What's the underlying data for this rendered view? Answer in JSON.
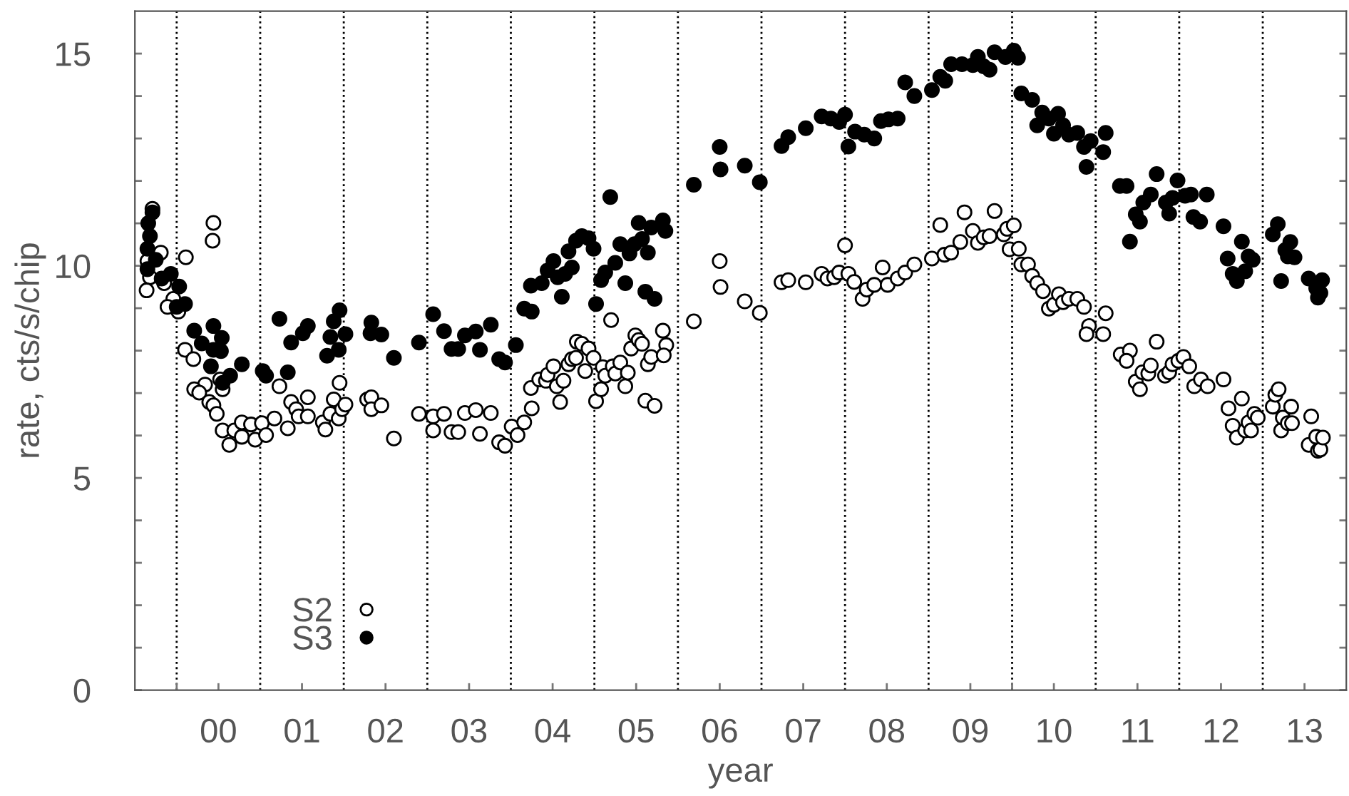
{
  "chart_data": {
    "type": "scatter",
    "xlabel": "year",
    "ylabel": "rate, cts/s/chip",
    "xlim": [
      -1.0,
      13.5
    ],
    "ylim": [
      0,
      16
    ],
    "xticks": [
      {
        "value": -0.5,
        "label": null
      },
      {
        "value": 0,
        "label": "00"
      },
      {
        "value": 1,
        "label": "01"
      },
      {
        "value": 2,
        "label": "02"
      },
      {
        "value": 3,
        "label": "03"
      },
      {
        "value": 4,
        "label": "04"
      },
      {
        "value": 5,
        "label": "05"
      },
      {
        "value": 6,
        "label": "06"
      },
      {
        "value": 7,
        "label": "07"
      },
      {
        "value": 8,
        "label": "08"
      },
      {
        "value": 9,
        "label": "09"
      },
      {
        "value": 9.5,
        "label": null
      },
      10,
      11,
      12,
      13
    ],
    "yticks": [
      0,
      {
        "value": 1,
        "label": null
      },
      {
        "value": 2,
        "label": null
      },
      {
        "value": 3,
        "label": null
      },
      {
        "value": 4,
        "label": null
      },
      5,
      {
        "value": 6,
        "label": null
      },
      {
        "value": 7,
        "label": null
      },
      {
        "value": 8,
        "label": null
      },
      {
        "value": 9,
        "label": null
      },
      10,
      {
        "value": 11,
        "label": null
      },
      {
        "value": 12,
        "label": null
      },
      {
        "value": 13,
        "label": null
      },
      {
        "value": 14,
        "label": null
      },
      15
    ],
    "ref_lines": [
      {
        "axis": "x",
        "value": -0.5,
        "line_style": "dotted",
        "color": "#000000"
      },
      {
        "axis": "x",
        "value": 0.5,
        "line_style": "dotted",
        "color": "#000000"
      },
      {
        "axis": "x",
        "value": 1.5,
        "line_style": "dotted",
        "color": "#000000"
      },
      {
        "axis": "x",
        "value": 2.5,
        "line_style": "dotted",
        "color": "#000000"
      },
      {
        "axis": "x",
        "value": 3.5,
        "line_style": "dotted",
        "color": "#000000"
      },
      {
        "axis": "x",
        "value": 4.5,
        "line_style": "dotted",
        "color": "#000000"
      },
      {
        "axis": "x",
        "value": 5.5,
        "line_style": "dotted",
        "color": "#000000"
      },
      {
        "axis": "x",
        "value": 6.5,
        "line_style": "dotted",
        "color": "#000000"
      },
      {
        "axis": "x",
        "value": 7.5,
        "line_style": "dotted",
        "color": "#000000"
      },
      {
        "axis": "x",
        "value": 8.5,
        "line_style": "dotted",
        "color": "#000000"
      },
      {
        "axis": "x",
        "value": 9.5,
        "line_style": "dotted",
        "color": "#000000"
      },
      {
        "axis": "x",
        "value": 10.5,
        "line_style": "dotted",
        "color": "#000000"
      },
      {
        "axis": "x",
        "value": 11.5,
        "line_style": "dotted",
        "color": "#000000"
      },
      {
        "axis": "x",
        "value": 12.5,
        "line_style": "dotted",
        "color": "#000000"
      }
    ],
    "grid": false,
    "legend": "bottom left",
    "marker": "circle",
    "series": [
      {
        "name": "S2",
        "color": "#ffffff",
        "x": [
          -0.79,
          -0.85,
          -0.69,
          -0.82,
          -0.86,
          -0.65,
          -0.39,
          -0.06,
          -0.07,
          -0.54,
          -0.61,
          -0.48,
          -0.4,
          -0.3,
          -0.16,
          -0.29,
          -0.23,
          -0.11,
          -0.06,
          -0.02,
          0.02,
          0.05,
          0.05,
          0.13,
          0.19,
          0.28,
          0.28,
          0.39,
          0.44,
          0.52,
          0.57,
          0.67,
          0.73,
          0.83,
          0.87,
          0.93,
          0.96,
          1.07,
          1.07,
          1.25,
          1.28,
          1.34,
          1.38,
          1.44,
          1.45,
          1.48,
          1.52,
          1.78,
          1.83,
          1.83,
          1.95,
          2.1,
          2.4,
          2.57,
          2.57,
          2.7,
          2.79,
          2.87,
          2.95,
          3.08,
          3.13,
          3.26,
          3.36,
          3.43,
          3.51,
          3.58,
          3.66,
          3.75,
          3.74,
          3.84,
          3.92,
          3.94,
          4.01,
          4.05,
          4.09,
          4.13,
          4.19,
          4.23,
          4.28,
          4.29,
          4.35,
          4.39,
          4.43,
          4.49,
          4.52,
          4.58,
          4.6,
          4.63,
          4.7,
          4.72,
          4.75,
          4.81,
          4.87,
          4.9,
          4.94,
          4.99,
          5.03,
          5.07,
          5.11,
          5.14,
          5.18,
          5.22,
          5.32,
          5.36,
          5.33,
          5.69,
          6.0,
          6.01,
          6.3,
          6.48,
          6.74,
          6.82,
          7.03,
          7.22,
          7.29,
          7.37,
          7.43,
          7.5,
          7.54,
          7.61,
          7.71,
          7.76,
          7.85,
          7.95,
          8.01,
          8.13,
          8.22,
          8.33,
          8.54,
          8.64,
          8.69,
          8.77,
          8.88,
          8.93,
          9.03,
          9.09,
          9.16,
          9.23,
          9.29,
          9.4,
          9.44,
          9.52,
          9.47,
          9.58,
          9.61,
          9.69,
          9.74,
          9.8,
          9.87,
          9.94,
          10.0,
          10.06,
          10.11,
          10.18,
          10.28,
          10.36,
          10.42,
          10.39,
          10.62,
          10.59,
          10.8,
          10.91,
          10.87,
          10.98,
          11.03,
          11.06,
          11.13,
          11.16,
          11.23,
          11.33,
          11.38,
          11.42,
          11.49,
          11.55,
          11.62,
          11.68,
          11.76,
          11.84,
          12.03,
          12.09,
          12.14,
          12.19,
          12.25,
          12.29,
          12.33,
          12.36,
          12.4,
          12.44,
          12.62,
          12.65,
          12.69,
          12.72,
          12.74,
          12.8,
          12.84,
          12.85,
          13.08,
          13.05,
          13.16,
          13.14,
          13.19,
          13.22
        ],
        "values": [
          11.34,
          10.11,
          10.31,
          9.73,
          9.42,
          9.59,
          10.2,
          11.01,
          10.59,
          9.22,
          9.03,
          8.92,
          8.02,
          7.8,
          7.2,
          7.09,
          7.01,
          6.79,
          6.71,
          6.51,
          7.32,
          7.09,
          6.12,
          5.78,
          6.12,
          6.31,
          5.97,
          6.26,
          5.9,
          6.29,
          6.01,
          6.4,
          7.16,
          6.17,
          6.79,
          6.62,
          6.45,
          6.9,
          6.45,
          6.31,
          6.14,
          6.51,
          6.85,
          6.4,
          7.24,
          6.62,
          6.73,
          6.85,
          6.9,
          6.62,
          6.71,
          5.93,
          6.51,
          6.45,
          6.12,
          6.51,
          6.08,
          6.08,
          6.53,
          6.6,
          6.04,
          6.53,
          5.84,
          5.76,
          6.21,
          6.01,
          6.31,
          6.64,
          7.12,
          7.32,
          7.29,
          7.43,
          7.63,
          7.16,
          6.79,
          7.29,
          7.68,
          7.8,
          7.83,
          8.21,
          8.16,
          7.52,
          8.05,
          7.83,
          6.81,
          7.09,
          7.61,
          7.41,
          8.72,
          7.63,
          7.46,
          7.72,
          7.16,
          7.48,
          8.05,
          8.36,
          8.25,
          8.16,
          6.82,
          7.68,
          7.85,
          6.7,
          8.47,
          8.13,
          7.89,
          8.69,
          10.11,
          9.5,
          9.16,
          8.89,
          9.61,
          9.66,
          9.61,
          9.81,
          9.7,
          9.73,
          9.84,
          10.48,
          9.81,
          9.62,
          9.22,
          9.44,
          9.55,
          9.96,
          9.55,
          9.7,
          9.84,
          10.03,
          10.17,
          10.96,
          10.26,
          10.31,
          10.56,
          11.26,
          10.82,
          10.54,
          10.67,
          10.7,
          11.29,
          10.74,
          10.87,
          10.95,
          10.39,
          10.4,
          10.03,
          10.03,
          9.76,
          9.59,
          9.4,
          8.99,
          9.08,
          9.33,
          9.14,
          9.22,
          9.22,
          9.03,
          8.58,
          8.39,
          8.88,
          8.39,
          7.91,
          8.0,
          7.76,
          7.27,
          7.09,
          7.49,
          7.46,
          7.65,
          8.21,
          7.41,
          7.49,
          7.68,
          7.76,
          7.85,
          7.63,
          7.16,
          7.32,
          7.16,
          7.32,
          6.64,
          6.23,
          5.95,
          6.87,
          6.12,
          6.31,
          6.12,
          6.51,
          6.42,
          6.68,
          6.96,
          7.09,
          6.12,
          6.42,
          6.29,
          6.68,
          6.29,
          6.45,
          5.78,
          5.64,
          5.97,
          5.67,
          5.95
        ]
      },
      {
        "name": "S3",
        "color": "#000000",
        "x": [
          -0.79,
          -0.84,
          -0.82,
          -0.85,
          -0.75,
          -0.85,
          -0.68,
          -0.57,
          -0.47,
          -0.4,
          -0.5,
          -0.29,
          -0.2,
          -0.06,
          0.04,
          -0.06,
          0.03,
          -0.09,
          0.05,
          0.14,
          0.28,
          0.53,
          0.57,
          0.73,
          0.87,
          1.01,
          1.07,
          0.83,
          1.3,
          1.34,
          1.38,
          1.45,
          1.52,
          1.44,
          1.82,
          1.83,
          1.95,
          2.1,
          2.4,
          2.57,
          2.7,
          2.79,
          2.95,
          2.87,
          3.08,
          3.26,
          3.13,
          3.36,
          3.43,
          3.56,
          3.66,
          3.75,
          3.74,
          3.87,
          3.94,
          4.01,
          4.06,
          4.15,
          4.23,
          4.11,
          4.19,
          4.28,
          4.35,
          4.43,
          4.49,
          4.52,
          4.58,
          4.63,
          4.69,
          4.75,
          4.81,
          4.87,
          4.92,
          4.98,
          5.03,
          5.07,
          5.14,
          5.11,
          5.18,
          5.22,
          5.32,
          5.35,
          5.69,
          6.01,
          6.0,
          6.3,
          6.48,
          6.74,
          6.82,
          7.03,
          7.22,
          7.33,
          7.43,
          7.5,
          7.54,
          7.62,
          7.73,
          7.85,
          7.93,
          8.02,
          8.13,
          8.22,
          8.33,
          8.54,
          8.64,
          8.7,
          8.77,
          8.9,
          9.03,
          9.09,
          9.16,
          9.23,
          9.29,
          9.42,
          9.52,
          9.57,
          9.61,
          9.74,
          9.86,
          9.8,
          9.94,
          10.05,
          10.0,
          10.11,
          10.18,
          10.28,
          10.36,
          10.39,
          10.44,
          10.62,
          10.59,
          10.79,
          10.87,
          10.91,
          10.98,
          11.03,
          11.07,
          11.16,
          11.23,
          11.34,
          11.38,
          11.42,
          11.48,
          11.57,
          11.64,
          11.67,
          11.75,
          11.83,
          12.03,
          12.08,
          12.14,
          12.19,
          12.25,
          12.29,
          12.33,
          12.38,
          12.62,
          12.68,
          12.72,
          12.77,
          12.83,
          12.8,
          12.88,
          13.05,
          13.14,
          13.16,
          13.21,
          13.19
        ],
        "values": [
          11.26,
          11.0,
          10.7,
          10.4,
          10.14,
          9.92,
          9.7,
          9.81,
          9.51,
          9.1,
          9.03,
          8.47,
          8.17,
          8.58,
          8.3,
          8.02,
          7.99,
          7.63,
          7.24,
          7.41,
          7.68,
          7.52,
          7.41,
          8.75,
          8.19,
          8.41,
          8.58,
          7.49,
          7.88,
          8.32,
          8.69,
          8.95,
          8.39,
          8.02,
          8.41,
          8.66,
          8.38,
          7.83,
          8.19,
          8.86,
          8.46,
          8.04,
          8.36,
          8.04,
          8.45,
          8.61,
          8.02,
          7.8,
          7.72,
          8.13,
          8.99,
          8.92,
          9.53,
          9.59,
          9.89,
          10.11,
          9.73,
          9.81,
          9.96,
          9.27,
          10.34,
          10.59,
          10.7,
          10.65,
          10.4,
          9.1,
          9.66,
          9.84,
          11.62,
          10.07,
          10.51,
          9.59,
          10.29,
          10.51,
          11.01,
          10.63,
          10.31,
          9.39,
          10.9,
          9.22,
          11.07,
          10.82,
          11.91,
          12.27,
          12.8,
          12.36,
          11.97,
          12.82,
          13.03,
          13.24,
          13.52,
          13.47,
          13.39,
          13.56,
          12.81,
          13.16,
          13.09,
          13.0,
          13.41,
          13.45,
          13.47,
          14.32,
          14.0,
          14.14,
          14.45,
          14.36,
          14.75,
          14.75,
          14.73,
          14.92,
          14.7,
          14.62,
          15.03,
          14.92,
          15.07,
          14.9,
          14.06,
          13.91,
          13.61,
          13.31,
          13.47,
          13.58,
          13.11,
          13.31,
          13.09,
          13.13,
          12.8,
          12.33,
          12.94,
          13.13,
          12.68,
          11.88,
          11.88,
          10.57,
          11.21,
          11.04,
          11.49,
          11.68,
          12.16,
          11.49,
          11.23,
          11.6,
          12.01,
          11.65,
          11.68,
          11.15,
          11.04,
          11.68,
          10.93,
          10.17,
          9.81,
          9.64,
          10.57,
          9.87,
          10.22,
          10.14,
          10.74,
          10.98,
          9.64,
          10.37,
          10.56,
          10.22,
          10.2,
          9.7,
          9.47,
          9.25,
          9.66,
          9.36
        ]
      }
    ]
  }
}
